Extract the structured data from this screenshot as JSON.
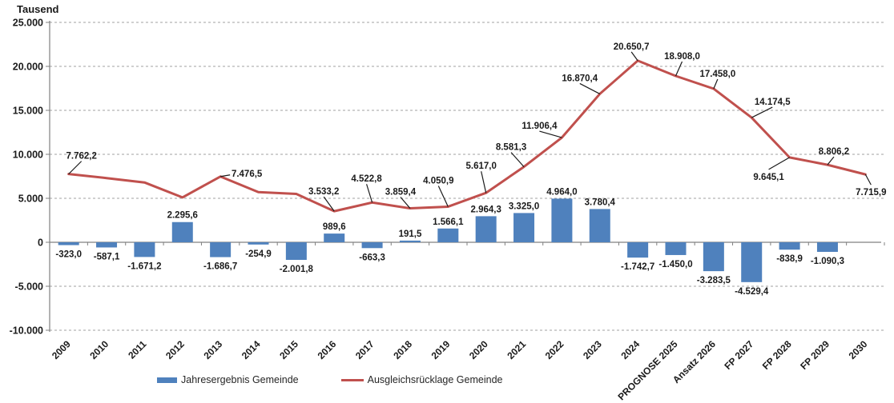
{
  "chart_data": {
    "type": "bar",
    "subtype": "combo-bar-line",
    "y_axis": {
      "title": "Tausend",
      "ticks": [
        "25.000",
        "20.000",
        "15.000",
        "10.000",
        "5.000",
        "0",
        "-5.000",
        "-10.000"
      ],
      "tick_values": [
        25000,
        20000,
        15000,
        10000,
        5000,
        0,
        -5000,
        -10000
      ],
      "min": -10000,
      "max": 25000,
      "gridlines": "dashed"
    },
    "categories": [
      "2009",
      "2010",
      "2011",
      "2012",
      "2013",
      "2014",
      "2015",
      "2016",
      "2017",
      "2018",
      "2019",
      "2020",
      "2021",
      "2022",
      "2023",
      "2024",
      "PROGNOSE 2025",
      "Ansatz 2026",
      "FP 2027",
      "FP 2028",
      "FP 2029",
      "2030"
    ],
    "series": [
      {
        "name": "Jahresergebnis Gemeinde",
        "type": "bar",
        "color": "#4F81BD",
        "values": [
          -323.0,
          -587.1,
          -1671.2,
          2295.6,
          -1686.7,
          -254.9,
          -2001.8,
          989.6,
          -663.3,
          191.5,
          1566.1,
          2964.3,
          3325.0,
          4964.0,
          3780.4,
          -1742.7,
          -1450.0,
          -3283.5,
          -4529.4,
          -838.9,
          -1090.3,
          null
        ],
        "labels": [
          "-323,0",
          "-587,1",
          "-1.671,2",
          "2.295,6",
          "-1.686,7",
          "-254,9",
          "-2.001,8",
          "989,6",
          "-663,3",
          "191,5",
          "1.566,1",
          "2.964,3",
          "3.325,0",
          "4.964,0",
          "3.780,4",
          "-1.742,7",
          "-1.450,0",
          "-3.283,5",
          "-4.529,4",
          "-838,9",
          "-1.090,3",
          null
        ]
      },
      {
        "name": "Ausgleichsrücklage Gemeinde",
        "type": "line",
        "color": "#C0504D",
        "values": [
          7762.2,
          7300,
          6800,
          5100,
          7476.5,
          5700,
          5500,
          3533.2,
          4522.8,
          3859.4,
          4050.9,
          5617.0,
          8581.3,
          11906.4,
          16870.4,
          20650.7,
          18908.0,
          17458.0,
          14174.5,
          9645.1,
          8806.2,
          7715.9
        ],
        "labels": [
          "7.762,2",
          null,
          null,
          null,
          "7.476,5",
          null,
          null,
          "3.533,2",
          "4.522,8",
          "3.859,4",
          "4.050,9",
          "5.617,0",
          "8.581,3",
          "11.906,4",
          "16.870,4",
          "20.650,7",
          "18.908,0",
          "17.458,0",
          "14.174,5",
          "9.645,1",
          "8.806,2",
          "7.715,9"
        ],
        "unlabeled_indices_estimated": [
          1,
          2,
          3,
          5,
          6
        ]
      }
    ],
    "legend": {
      "position": "bottom",
      "items": [
        "Jahresergebnis Gemeinde",
        "Ausgleichsrücklage Gemeinde"
      ]
    },
    "colors": {
      "bar": "#4F81BD",
      "line": "#C0504D",
      "gridline": "#A0A0A0",
      "axis": "#808080",
      "text": "#1a1a1a"
    }
  }
}
